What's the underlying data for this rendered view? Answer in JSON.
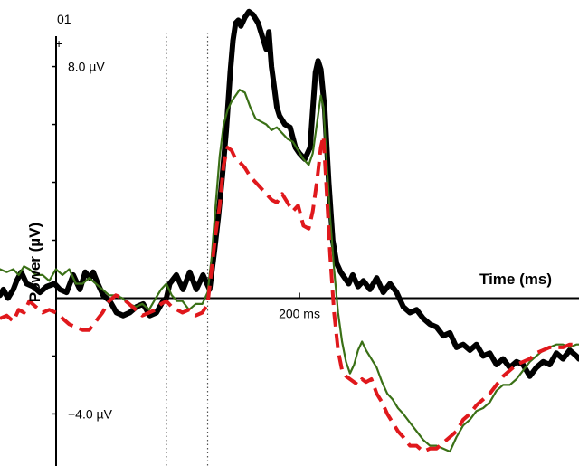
{
  "chart_data": {
    "type": "line",
    "title": "",
    "channel_label": "01",
    "polarity_label": "+",
    "xlabel": "Time (ms)",
    "ylabel": "Power (µV)",
    "x_unit": "ms",
    "y_unit": "µV",
    "xlim": [
      -250,
      620
    ],
    "ylim": [
      -5.8,
      10.3
    ],
    "x_tick_labels": [
      {
        "x": 200,
        "label": "200 ms"
      }
    ],
    "y_tick_labels": [
      {
        "y": 8.0,
        "label": "8.0 µV"
      },
      {
        "y": -4.0,
        "label": "−4.0 µV"
      }
    ],
    "y_ticks": [
      8,
      6,
      4,
      2,
      -2,
      -4
    ],
    "x_ticks": [
      200
    ],
    "reference_lines_x": [
      0,
      62
    ],
    "grid": false,
    "legend": "none",
    "series": [
      {
        "color": "#000000",
        "dash": "solid",
        "weight": "heavy",
        "x": [
          -250,
          -245,
          -238,
          -230,
          -225,
          -218,
          -210,
          -200,
          -190,
          -180,
          -168,
          -160,
          -150,
          -140,
          -130,
          -122,
          -115,
          -110,
          -103,
          -95,
          -85,
          -75,
          -65,
          -55,
          -45,
          -35,
          -25,
          -15,
          -5,
          0,
          5,
          15,
          25,
          35,
          45,
          55,
          65,
          72,
          78,
          84,
          90,
          96,
          100,
          104,
          108,
          112,
          118,
          124,
          130,
          138,
          146,
          150,
          154,
          158,
          162,
          166,
          170,
          178,
          186,
          194,
          200,
          208,
          216,
          220,
          224,
          228,
          232,
          238,
          244,
          250,
          256,
          262,
          268,
          274,
          280,
          288,
          296,
          306,
          316,
          326,
          336,
          346,
          356,
          366,
          376,
          386,
          396,
          406,
          416,
          426,
          436,
          446,
          456,
          466,
          476,
          486,
          496,
          506,
          516,
          526,
          536,
          546,
          556,
          566,
          576,
          586,
          596,
          606,
          616,
          620
        ],
        "y": [
          0.1,
          0.3,
          0.0,
          0.3,
          0.6,
          0.9,
          0.5,
          0.4,
          0.2,
          0.4,
          0.5,
          0.3,
          0.2,
          0.8,
          0.3,
          0.9,
          0.7,
          0.9,
          0.5,
          0.1,
          -0.1,
          -0.5,
          -0.6,
          -0.5,
          -0.3,
          -0.2,
          -0.6,
          -0.5,
          -0.1,
          0.0,
          0.5,
          0.8,
          0.3,
          0.9,
          0.3,
          0.8,
          0.3,
          1.6,
          2.8,
          4.2,
          5.8,
          7.8,
          8.9,
          9.5,
          9.6,
          9.4,
          9.7,
          9.9,
          9.8,
          9.5,
          8.9,
          8.6,
          9.2,
          8.0,
          7.3,
          6.6,
          6.3,
          6.0,
          5.9,
          5.2,
          5.0,
          4.8,
          5.2,
          6.5,
          7.8,
          8.2,
          7.9,
          6.5,
          4.0,
          2.0,
          1.2,
          0.9,
          0.7,
          0.5,
          0.8,
          0.4,
          0.6,
          0.3,
          0.7,
          0.2,
          0.5,
          0.2,
          -0.3,
          -0.5,
          -0.4,
          -0.7,
          -0.9,
          -1.0,
          -1.3,
          -1.2,
          -1.7,
          -1.6,
          -1.8,
          -1.6,
          -2.0,
          -1.9,
          -2.3,
          -2.1,
          -2.4,
          -2.2,
          -2.3,
          -2.7,
          -2.4,
          -2.2,
          -2.3,
          -1.9,
          -2.1,
          -1.8,
          -2.0,
          -2.1
        ]
      },
      {
        "color": "#3a7016",
        "dash": "solid",
        "weight": "thin",
        "x": [
          -250,
          -240,
          -230,
          -222,
          -214,
          -206,
          -196,
          -186,
          -176,
          -166,
          -156,
          -146,
          -136,
          -126,
          -116,
          -106,
          -96,
          -86,
          -76,
          -66,
          -56,
          -46,
          -36,
          -26,
          -16,
          -8,
          0,
          8,
          16,
          24,
          34,
          44,
          54,
          62,
          68,
          74,
          80,
          86,
          92,
          98,
          104,
          110,
          118,
          126,
          134,
          142,
          150,
          158,
          166,
          174,
          182,
          190,
          198,
          206,
          214,
          220,
          226,
          232,
          236,
          240,
          246,
          252,
          258,
          264,
          270,
          276,
          282,
          288,
          294,
          300,
          308,
          316,
          324,
          332,
          340,
          348,
          356,
          366,
          376,
          386,
          396,
          406,
          416,
          426,
          436,
          446,
          456,
          466,
          476,
          486,
          496,
          506,
          516,
          526,
          536,
          546,
          556,
          566,
          576,
          586,
          596,
          606,
          616,
          620
        ],
        "y": [
          1.0,
          0.9,
          1.0,
          0.8,
          1.1,
          1.0,
          0.8,
          0.8,
          0.6,
          1.0,
          0.8,
          1.0,
          0.5,
          0.5,
          0.7,
          0.5,
          0.3,
          0.1,
          0.1,
          0.0,
          -0.2,
          -0.3,
          -0.2,
          -0.4,
          0.0,
          0.3,
          0.5,
          0.1,
          -0.1,
          -0.1,
          -0.4,
          -0.2,
          -0.2,
          0.2,
          1.4,
          3.2,
          4.9,
          6.0,
          6.5,
          6.8,
          7.0,
          7.2,
          7.1,
          6.6,
          6.2,
          6.1,
          6.0,
          5.8,
          5.9,
          5.7,
          5.5,
          5.4,
          5.1,
          4.8,
          4.6,
          5.0,
          6.0,
          7.0,
          6.6,
          5.0,
          2.8,
          1.0,
          -0.5,
          -1.5,
          -2.2,
          -2.6,
          -2.3,
          -1.8,
          -1.5,
          -1.8,
          -2.1,
          -2.4,
          -2.9,
          -3.3,
          -3.5,
          -3.8,
          -4.0,
          -4.3,
          -4.6,
          -4.9,
          -5.1,
          -5.1,
          -5.2,
          -5.3,
          -4.8,
          -4.4,
          -4.2,
          -3.9,
          -3.8,
          -3.6,
          -3.2,
          -3.0,
          -3.0,
          -2.8,
          -2.5,
          -2.2,
          -2.0,
          -1.8,
          -1.7,
          -1.6,
          -1.6,
          -1.7,
          -1.6,
          -1.6
        ]
      },
      {
        "color": "#e0181c",
        "dash": "dashed",
        "weight": "medium",
        "x": [
          -250,
          -240,
          -230,
          -222,
          -214,
          -206,
          -196,
          -186,
          -176,
          -166,
          -156,
          -146,
          -136,
          -126,
          -116,
          -106,
          -96,
          -86,
          -76,
          -66,
          -56,
          -46,
          -36,
          -26,
          -16,
          -8,
          0,
          8,
          16,
          24,
          34,
          44,
          54,
          62,
          68,
          74,
          80,
          86,
          92,
          98,
          104,
          110,
          118,
          126,
          134,
          142,
          150,
          158,
          166,
          174,
          182,
          190,
          198,
          206,
          214,
          220,
          226,
          232,
          236,
          240,
          246,
          252,
          258,
          264,
          270,
          276,
          282,
          288,
          294,
          300,
          308,
          316,
          324,
          332,
          340,
          348,
          356,
          366,
          376,
          386,
          396,
          406,
          416,
          426,
          436,
          446,
          456,
          466,
          476,
          486,
          496,
          506,
          516,
          526,
          536,
          546,
          556,
          566,
          576,
          586,
          596,
          606,
          616,
          620
        ],
        "y": [
          -0.7,
          -0.6,
          -0.8,
          -0.4,
          -0.5,
          -0.1,
          -0.3,
          -0.5,
          -0.4,
          -0.5,
          -0.7,
          -0.9,
          -1.0,
          -1.1,
          -1.1,
          -0.8,
          -0.5,
          -0.1,
          0.1,
          0.0,
          -0.2,
          -0.4,
          -0.6,
          -0.5,
          -0.4,
          -0.2,
          -0.1,
          -0.3,
          -0.4,
          -0.5,
          -0.4,
          -0.6,
          -0.5,
          -0.2,
          1.0,
          2.2,
          3.2,
          4.6,
          5.2,
          5.1,
          4.8,
          4.7,
          4.5,
          4.2,
          4.0,
          3.8,
          3.6,
          3.4,
          3.3,
          3.6,
          3.3,
          3.0,
          3.2,
          2.5,
          2.4,
          3.0,
          4.0,
          5.2,
          5.6,
          4.0,
          1.5,
          -0.5,
          -1.8,
          -2.5,
          -2.7,
          -2.8,
          -2.9,
          -3.0,
          -2.8,
          -2.9,
          -2.8,
          -3.3,
          -3.6,
          -4.0,
          -4.3,
          -4.6,
          -4.8,
          -5.1,
          -5.1,
          -5.3,
          -5.2,
          -5.2,
          -5.0,
          -4.8,
          -4.6,
          -4.2,
          -4.0,
          -3.7,
          -3.5,
          -3.3,
          -3.0,
          -2.7,
          -2.5,
          -2.3,
          -2.2,
          -2.1,
          -1.9,
          -1.8,
          -1.7,
          -1.7,
          -1.7,
          -1.6,
          -1.6,
          -1.6
        ]
      }
    ]
  }
}
